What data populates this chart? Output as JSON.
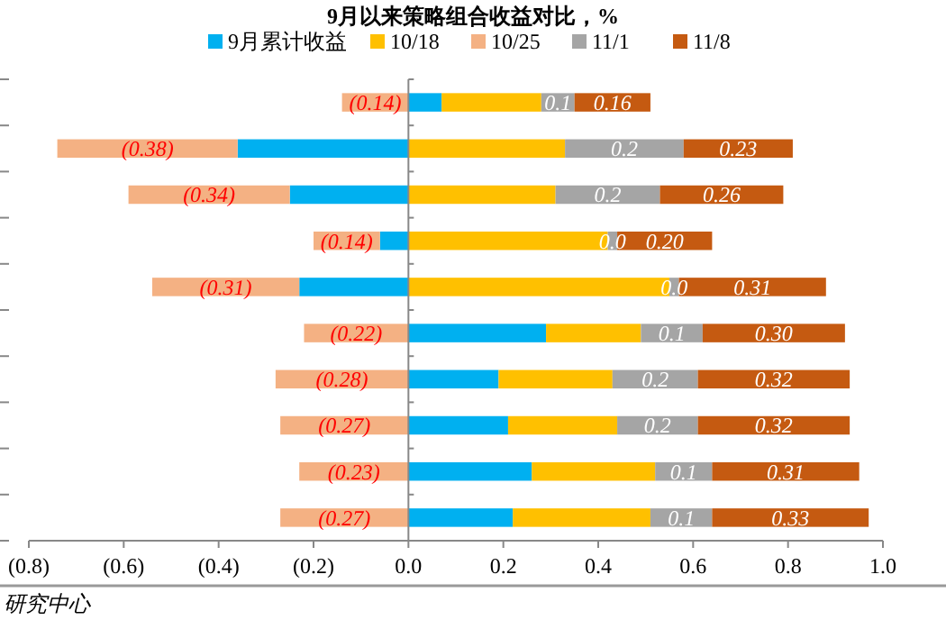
{
  "chart_data": {
    "type": "bar",
    "orientation": "horizontal",
    "stacked": true,
    "title": "9月以来策略组合收益对比，%",
    "categories": [
      null,
      null,
      null,
      null,
      null,
      null,
      null,
      null,
      null,
      null
    ],
    "series": [
      {
        "name": "9月累计收益",
        "color": "#00b0f0",
        "values": [
          0.07,
          -0.36,
          -0.25,
          -0.06,
          -0.23,
          0.29,
          0.19,
          0.21,
          0.26,
          0.22
        ]
      },
      {
        "name": "10/18",
        "color": "#ffc000",
        "values": [
          0.21,
          0.33,
          0.31,
          0.42,
          0.55,
          0.2,
          0.24,
          0.23,
          0.26,
          0.29
        ]
      },
      {
        "name": "10/25",
        "color": "#f4b183",
        "values": [
          -0.14,
          -0.38,
          -0.34,
          -0.14,
          -0.31,
          -0.22,
          -0.28,
          -0.27,
          -0.23,
          -0.27
        ],
        "value_labels": [
          "(0.14)",
          "(0.38)",
          "(0.34)",
          "(0.14)",
          "(0.31)",
          "(0.22)",
          "(0.28)",
          "(0.27)",
          "(0.23)",
          "(0.27)"
        ]
      },
      {
        "name": "11/1",
        "color": "#a5a5a5",
        "values": [
          0.07,
          0.25,
          0.22,
          0.02,
          0.02,
          0.13,
          0.18,
          0.17,
          0.12,
          0.13
        ],
        "value_labels": [
          "0.1",
          "0.2",
          "0.2",
          "0.0",
          "0.0",
          "0.1",
          "0.2",
          "0.2",
          "0.1",
          "0.1"
        ]
      },
      {
        "name": "11/8",
        "color": "#c55a11",
        "values": [
          0.16,
          0.23,
          0.26,
          0.2,
          0.31,
          0.3,
          0.32,
          0.32,
          0.31,
          0.33
        ],
        "value_labels": [
          "0.16",
          "0.23",
          "0.26",
          "0.20",
          "0.31",
          "0.30",
          "0.32",
          "0.32",
          "0.31",
          "0.33"
        ]
      }
    ],
    "xlim": [
      -0.8,
      1.0
    ],
    "xticks": [
      {
        "value": -0.8,
        "label": "(0.8)"
      },
      {
        "value": -0.6,
        "label": "(0.6)"
      },
      {
        "value": -0.4,
        "label": "(0.4)"
      },
      {
        "value": -0.2,
        "label": "(0.2)"
      },
      {
        "value": 0,
        "label": "0.0"
      },
      {
        "value": 0.2,
        "label": "0.2"
      },
      {
        "value": 0.4,
        "label": "0.4"
      },
      {
        "value": 0.6,
        "label": "0.6"
      },
      {
        "value": 0.8,
        "label": "0.8"
      },
      {
        "value": 1.0,
        "label": "1.0"
      }
    ],
    "legend": "top",
    "annotations": [
      "研究中心"
    ]
  }
}
